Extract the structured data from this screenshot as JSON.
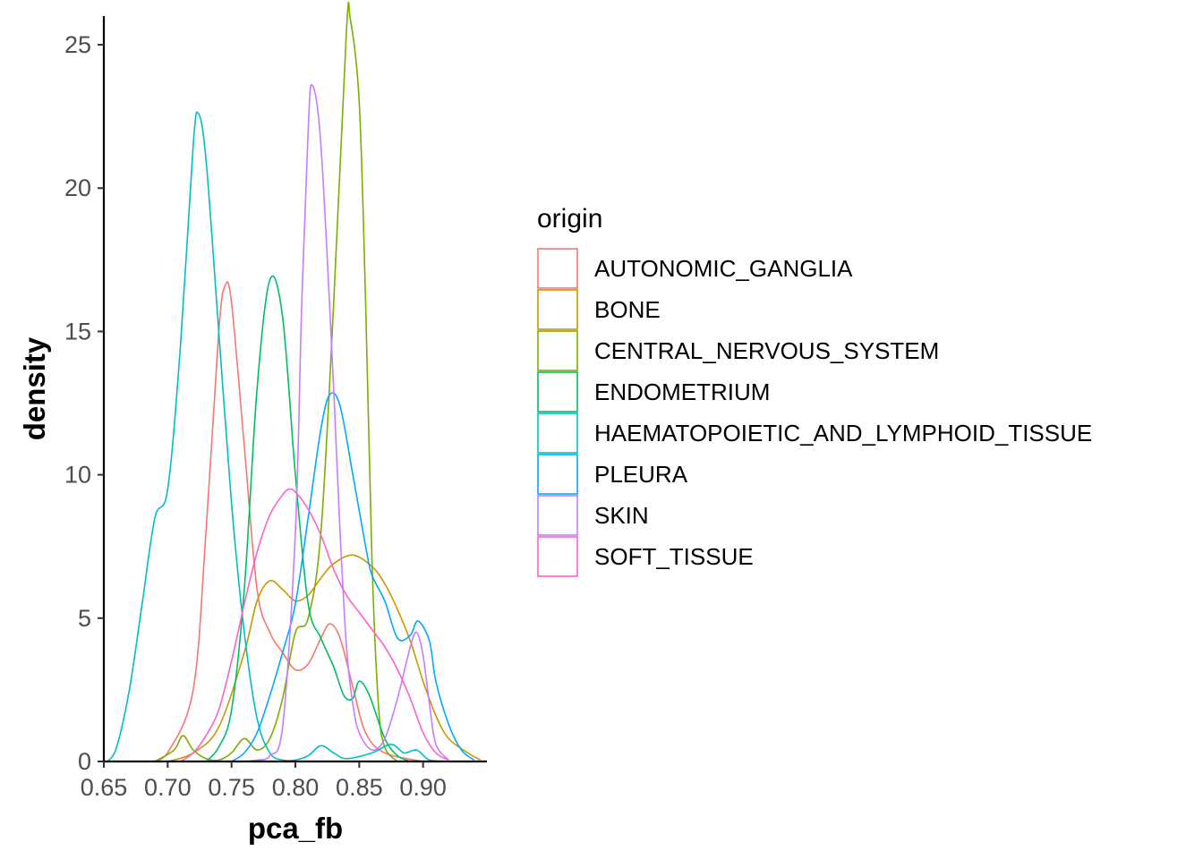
{
  "chart_data": {
    "type": "density",
    "xlabel": "pca_fb",
    "ylabel": "density",
    "xlim": [
      0.65,
      0.95
    ],
    "ylim": [
      0,
      26
    ],
    "x_ticks": [
      "0.65",
      "0.70",
      "0.75",
      "0.80",
      "0.85",
      "0.90"
    ],
    "y_ticks": [
      "0",
      "5",
      "10",
      "15",
      "20",
      "25"
    ],
    "grid": false,
    "legend": {
      "title": "origin",
      "position": "right"
    },
    "series": [
      {
        "name": "AUTONOMIC_GANGLIA",
        "color": "#F8766D",
        "points": [
          [
            0.69,
            0
          ],
          [
            0.7,
            0.3
          ],
          [
            0.72,
            2.5
          ],
          [
            0.73,
            8
          ],
          [
            0.74,
            15
          ],
          [
            0.745,
            16.6
          ],
          [
            0.75,
            16
          ],
          [
            0.76,
            11
          ],
          [
            0.77,
            6
          ],
          [
            0.78,
            4.5
          ],
          [
            0.79,
            3.8
          ],
          [
            0.8,
            3.2
          ],
          [
            0.81,
            3.4
          ],
          [
            0.82,
            4.3
          ],
          [
            0.827,
            4.8
          ],
          [
            0.835,
            4.3
          ],
          [
            0.845,
            2.6
          ],
          [
            0.855,
            1
          ],
          [
            0.87,
            0.3
          ],
          [
            0.9,
            0
          ]
        ]
      },
      {
        "name": "BONE",
        "color": "#CD9600",
        "points": [
          [
            0.7,
            0
          ],
          [
            0.72,
            0.3
          ],
          [
            0.74,
            1.2
          ],
          [
            0.76,
            3.8
          ],
          [
            0.77,
            5.6
          ],
          [
            0.78,
            6.3
          ],
          [
            0.79,
            6
          ],
          [
            0.8,
            5.6
          ],
          [
            0.81,
            5.8
          ],
          [
            0.82,
            6.4
          ],
          [
            0.83,
            6.9
          ],
          [
            0.845,
            7.2
          ],
          [
            0.86,
            6.8
          ],
          [
            0.87,
            6.2
          ],
          [
            0.88,
            5.3
          ],
          [
            0.89,
            4.2
          ],
          [
            0.9,
            2.8
          ],
          [
            0.91,
            1.6
          ],
          [
            0.92,
            0.8
          ],
          [
            0.935,
            0.3
          ],
          [
            0.945,
            0.05
          ]
        ]
      },
      {
        "name": "CENTRAL_NERVOUS_SYSTEM",
        "color": "#7CAE00",
        "points": [
          [
            0.69,
            0
          ],
          [
            0.705,
            0.4
          ],
          [
            0.712,
            0.9
          ],
          [
            0.72,
            0.4
          ],
          [
            0.73,
            0.1
          ],
          [
            0.74,
            0.05
          ],
          [
            0.75,
            0.3
          ],
          [
            0.76,
            0.8
          ],
          [
            0.77,
            0.4
          ],
          [
            0.78,
            0.8
          ],
          [
            0.79,
            2.2
          ],
          [
            0.8,
            4.5
          ],
          [
            0.81,
            5
          ],
          [
            0.82,
            8
          ],
          [
            0.83,
            16
          ],
          [
            0.84,
            25.5
          ],
          [
            0.843,
            25.9
          ],
          [
            0.85,
            23
          ],
          [
            0.855,
            16
          ],
          [
            0.86,
            7
          ],
          [
            0.865,
            2
          ],
          [
            0.87,
            0.5
          ],
          [
            0.88,
            0
          ]
        ]
      },
      {
        "name": "ENDOMETRIUM",
        "color": "#00BE67",
        "points": [
          [
            0.73,
            0
          ],
          [
            0.74,
            0.5
          ],
          [
            0.75,
            1.8
          ],
          [
            0.76,
            6
          ],
          [
            0.77,
            13
          ],
          [
            0.78,
            16.8
          ],
          [
            0.79,
            15.5
          ],
          [
            0.8,
            10
          ],
          [
            0.81,
            5.5
          ],
          [
            0.82,
            4.3
          ],
          [
            0.83,
            3.3
          ],
          [
            0.838,
            2.3
          ],
          [
            0.845,
            2.2
          ],
          [
            0.85,
            2.8
          ],
          [
            0.858,
            2.3
          ],
          [
            0.87,
            0.8
          ],
          [
            0.88,
            0.2
          ],
          [
            0.89,
            0
          ]
        ]
      },
      {
        "name": "HAEMATOPOIETIC_AND_LYMPHOID_TISSUE",
        "color": "#00BFC4",
        "points": [
          [
            0.653,
            0
          ],
          [
            0.66,
            0.5
          ],
          [
            0.67,
            2.5
          ],
          [
            0.68,
            5.5
          ],
          [
            0.69,
            8.5
          ],
          [
            0.7,
            9.5
          ],
          [
            0.71,
            14.5
          ],
          [
            0.72,
            21.5
          ],
          [
            0.724,
            22.6
          ],
          [
            0.73,
            21
          ],
          [
            0.74,
            15
          ],
          [
            0.75,
            9
          ],
          [
            0.76,
            4.5
          ],
          [
            0.77,
            1.5
          ],
          [
            0.78,
            0.3
          ],
          [
            0.79,
            0.05
          ],
          [
            0.8,
            0.05
          ],
          [
            0.81,
            0.2
          ],
          [
            0.82,
            0.55
          ],
          [
            0.83,
            0.3
          ],
          [
            0.84,
            0.1
          ],
          [
            0.86,
            0.3
          ],
          [
            0.875,
            0.6
          ],
          [
            0.885,
            0.3
          ],
          [
            0.895,
            0.4
          ],
          [
            0.905,
            0.05
          ],
          [
            0.92,
            0
          ]
        ]
      },
      {
        "name": "PLEURA",
        "color": "#00A9FF",
        "points": [
          [
            0.75,
            0
          ],
          [
            0.76,
            0.3
          ],
          [
            0.77,
            1
          ],
          [
            0.78,
            2.3
          ],
          [
            0.79,
            3.8
          ],
          [
            0.8,
            5.5
          ],
          [
            0.81,
            8.5
          ],
          [
            0.82,
            11.6
          ],
          [
            0.827,
            12.8
          ],
          [
            0.835,
            12.4
          ],
          [
            0.845,
            10
          ],
          [
            0.855,
            7.5
          ],
          [
            0.86,
            6.5
          ],
          [
            0.87,
            5.6
          ],
          [
            0.88,
            4.3
          ],
          [
            0.89,
            4.4
          ],
          [
            0.896,
            4.9
          ],
          [
            0.905,
            4.2
          ],
          [
            0.91,
            2.8
          ],
          [
            0.92,
            1.3
          ],
          [
            0.93,
            0.4
          ],
          [
            0.94,
            0.05
          ]
        ]
      },
      {
        "name": "SKIN",
        "color": "#C77CFF",
        "points": [
          [
            0.76,
            0
          ],
          [
            0.77,
            0.05
          ],
          [
            0.78,
            0.2
          ],
          [
            0.79,
            1.2
          ],
          [
            0.8,
            8
          ],
          [
            0.805,
            16
          ],
          [
            0.81,
            22
          ],
          [
            0.813,
            23.6
          ],
          [
            0.82,
            21.5
          ],
          [
            0.83,
            13
          ],
          [
            0.835,
            8
          ],
          [
            0.84,
            4
          ],
          [
            0.845,
            2
          ],
          [
            0.85,
            1
          ],
          [
            0.86,
            0.4
          ],
          [
            0.87,
            0.8
          ],
          [
            0.88,
            2.2
          ],
          [
            0.89,
            4
          ],
          [
            0.895,
            4.5
          ],
          [
            0.9,
            3.7
          ],
          [
            0.905,
            2
          ],
          [
            0.91,
            0.6
          ],
          [
            0.92,
            0.05
          ]
        ]
      },
      {
        "name": "SOFT_TISSUE",
        "color": "#FF61CC",
        "points": [
          [
            0.71,
            0
          ],
          [
            0.72,
            0.3
          ],
          [
            0.73,
            0.9
          ],
          [
            0.74,
            1.8
          ],
          [
            0.75,
            3.5
          ],
          [
            0.76,
            5.5
          ],
          [
            0.77,
            7.3
          ],
          [
            0.78,
            8.6
          ],
          [
            0.79,
            9.3
          ],
          [
            0.795,
            9.5
          ],
          [
            0.8,
            9.4
          ],
          [
            0.81,
            8.8
          ],
          [
            0.82,
            7.9
          ],
          [
            0.83,
            6.7
          ],
          [
            0.84,
            5.8
          ],
          [
            0.85,
            5.2
          ],
          [
            0.86,
            4.6
          ],
          [
            0.87,
            4
          ],
          [
            0.88,
            3.2
          ],
          [
            0.89,
            2.2
          ],
          [
            0.9,
            1
          ],
          [
            0.91,
            0.3
          ],
          [
            0.92,
            0.05
          ]
        ]
      }
    ]
  }
}
